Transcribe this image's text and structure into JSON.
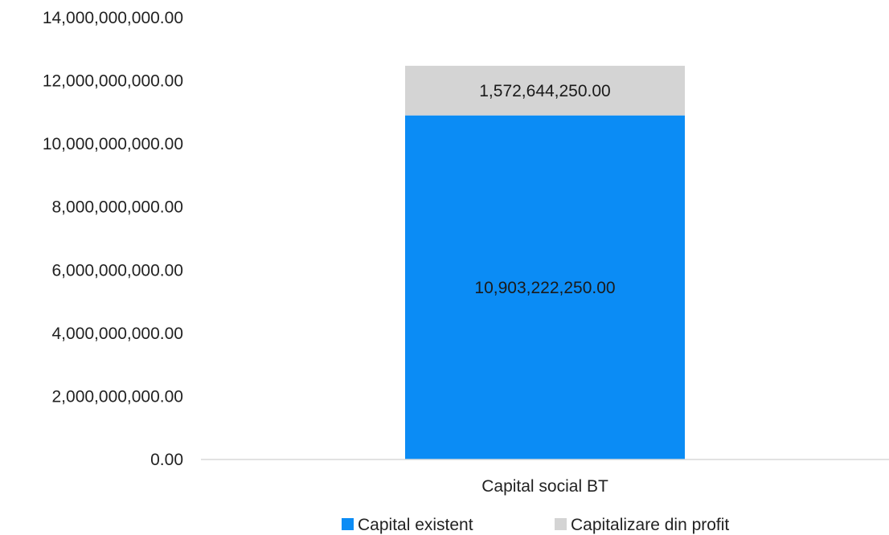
{
  "chart_data": {
    "type": "bar",
    "stacked": true,
    "categories": [
      "Capital social BT"
    ],
    "series": [
      {
        "name": "Capital existent",
        "values": [
          10903222250
        ],
        "color": "#0b8cf5",
        "label": "10,903,222,250.00"
      },
      {
        "name": "Capitalizare din profit",
        "values": [
          1572644250
        ],
        "color": "#d4d4d4",
        "label": "1,572,644,250.00"
      }
    ],
    "ylim": [
      0,
      14000000000
    ],
    "y_ticks": [
      {
        "value": 0,
        "label": "0.00"
      },
      {
        "value": 2000000000,
        "label": "2,000,000,000.00"
      },
      {
        "value": 4000000000,
        "label": "4,000,000,000.00"
      },
      {
        "value": 6000000000,
        "label": "6,000,000,000.00"
      },
      {
        "value": 8000000000,
        "label": "8,000,000,000.00"
      },
      {
        "value": 10000000000,
        "label": "10,000,000,000.00"
      },
      {
        "value": 12000000000,
        "label": "12,000,000,000.00"
      },
      {
        "value": 14000000000,
        "label": "14,000,000,000.00"
      }
    ],
    "grid": false,
    "legend_position": "bottom",
    "title": "",
    "xlabel": "",
    "ylabel": ""
  }
}
